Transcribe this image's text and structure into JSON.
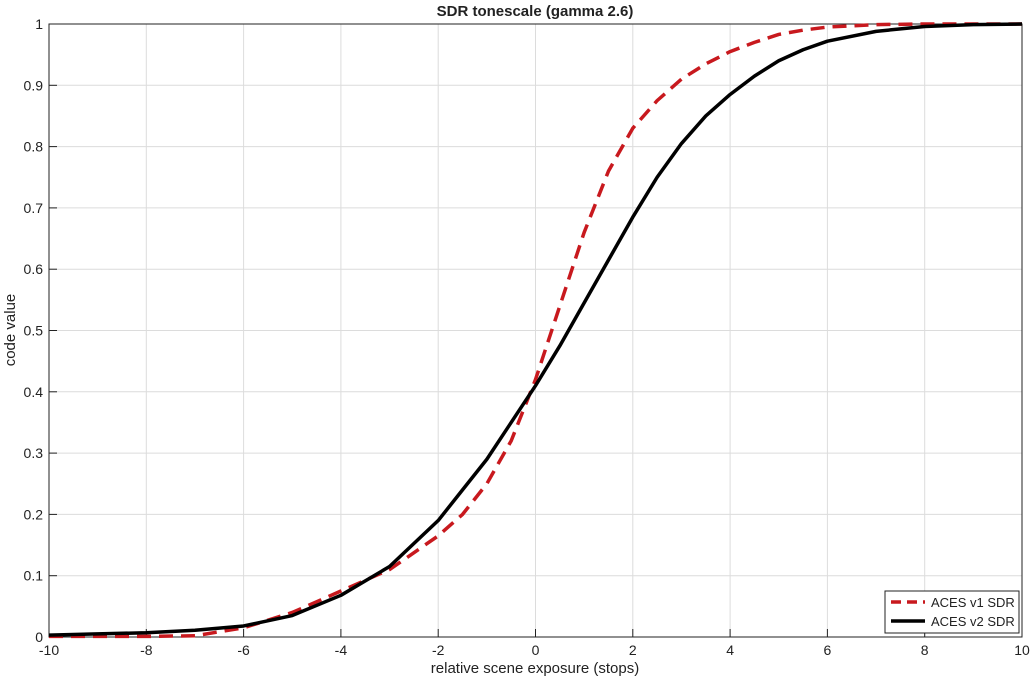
{
  "chart_data": {
    "type": "line",
    "title": "SDR tonescale (gamma 2.6)",
    "x_label": "relative scene exposure (stops)",
    "y_label": "code value",
    "x": [
      -10,
      -9,
      -8,
      -7,
      -6,
      -5,
      -4,
      -3,
      -2,
      -1.5,
      -1,
      -0.5,
      0,
      0.5,
      1,
      1.5,
      2,
      2.5,
      3,
      3.5,
      4,
      4.5,
      5,
      5.5,
      6,
      7,
      8,
      9,
      10
    ],
    "series": [
      {
        "name": "ACES v1 SDR",
        "color": "#c8191e",
        "dash": true,
        "values": [
          0.001,
          0.001,
          0.001,
          0.002,
          0.015,
          0.04,
          0.075,
          0.11,
          0.165,
          0.2,
          0.25,
          0.32,
          0.42,
          0.54,
          0.66,
          0.76,
          0.83,
          0.875,
          0.91,
          0.935,
          0.955,
          0.97,
          0.983,
          0.99,
          0.995,
          0.999,
          1,
          1,
          1
        ]
      },
      {
        "name": "ACES v2 SDR",
        "color": "#000000",
        "dash": false,
        "values": [
          0.003,
          0.005,
          0.007,
          0.011,
          0.018,
          0.035,
          0.068,
          0.115,
          0.19,
          0.24,
          0.29,
          0.35,
          0.41,
          0.475,
          0.545,
          0.615,
          0.685,
          0.75,
          0.805,
          0.85,
          0.885,
          0.915,
          0.94,
          0.958,
          0.972,
          0.988,
          0.996,
          0.999,
          1
        ]
      }
    ],
    "xlim": [
      -10,
      10
    ],
    "xticks": [
      -10,
      -8,
      -6,
      -4,
      -2,
      0,
      2,
      4,
      6,
      8,
      10
    ],
    "ylim": [
      0,
      1
    ],
    "yticks": [
      0,
      0.1,
      0.2,
      0.3,
      0.4,
      0.5,
      0.6,
      0.7,
      0.8,
      0.9,
      1
    ],
    "grid": true,
    "legend": "lower right"
  }
}
